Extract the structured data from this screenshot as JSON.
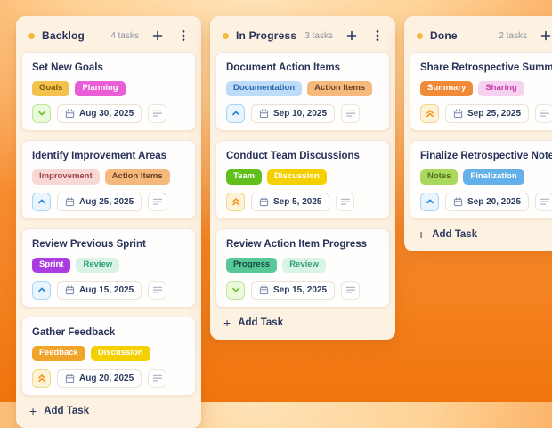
{
  "ui": {
    "add_task_label": "Add Task",
    "add_icon_glyph": "+"
  },
  "colors": {
    "background_top": "#ffe2b6",
    "background_bottom": "#f1750e",
    "column_bg": "#fdf1e2",
    "card_bg": "#fffefc",
    "column_dot": "#f6b844",
    "title_text": "#27325a",
    "count_text": "#8d93a3",
    "priority_low_icon": "#72c438",
    "priority_medium_icon": "#3187d6",
    "priority_high_icon": "#f59a23"
  },
  "board": {
    "columns": [
      {
        "name": "Backlog",
        "count": "4 tasks",
        "tasks": [
          {
            "title": "Set New Goals",
            "tags": [
              {
                "label": "Goals",
                "bg": "#f2c14e",
                "fg": "#7d5c09"
              },
              {
                "label": "Planning",
                "bg": "#e95ed6",
                "fg": "#ffffff"
              }
            ],
            "priority": "low",
            "date": "Aug 30, 2025"
          },
          {
            "title": "Identify Improvement Areas",
            "tags": [
              {
                "label": "Improvement",
                "bg": "#f7d8d4",
                "fg": "#9c4550"
              },
              {
                "label": "Action Items",
                "bg": "#f5b97d",
                "fg": "#6b4226"
              }
            ],
            "priority": "medium",
            "date": "Aug 25, 2025"
          },
          {
            "title": "Review Previous Sprint",
            "tags": [
              {
                "label": "Sprint",
                "bg": "#aa3ce0",
                "fg": "#ffffff"
              },
              {
                "label": "Review",
                "bg": "#d9f4e6",
                "fg": "#2f9e77"
              }
            ],
            "priority": "medium",
            "date": "Aug 15, 2025"
          },
          {
            "title": "Gather Feedback",
            "tags": [
              {
                "label": "Feedback",
                "bg": "#f0a42a",
                "fg": "#ffffff"
              },
              {
                "label": "Discussion",
                "bg": "#f4d000",
                "fg": "#ffffff"
              }
            ],
            "priority": "high",
            "date": "Aug 20, 2025"
          }
        ]
      },
      {
        "name": "In Progress",
        "count": "3 tasks",
        "tasks": [
          {
            "title": "Document Action Items",
            "tags": [
              {
                "label": "Documentation",
                "bg": "#bcdcf7",
                "fg": "#2b66b0"
              },
              {
                "label": "Action Items",
                "bg": "#f5b97d",
                "fg": "#6b4226"
              }
            ],
            "priority": "medium",
            "date": "Sep 10, 2025"
          },
          {
            "title": "Conduct Team Discussions",
            "tags": [
              {
                "label": "Team",
                "bg": "#61bf1d",
                "fg": "#ffffff"
              },
              {
                "label": "Discussion",
                "bg": "#f4d000",
                "fg": "#ffffff"
              }
            ],
            "priority": "high",
            "date": "Sep 5, 2025"
          },
          {
            "title": "Review Action Item Progress",
            "tags": [
              {
                "label": "Progress",
                "bg": "#57c897",
                "fg": "#1b4a40"
              },
              {
                "label": "Review",
                "bg": "#d9f4e6",
                "fg": "#2f9e77"
              }
            ],
            "priority": "low",
            "date": "Sep 15, 2025"
          }
        ]
      },
      {
        "name": "Done",
        "count": "2 tasks",
        "tasks": [
          {
            "title": "Share Retrospective Summary",
            "tags": [
              {
                "label": "Summary",
                "bg": "#f08a36",
                "fg": "#ffffff"
              },
              {
                "label": "Sharing",
                "bg": "#f6d2f0",
                "fg": "#c43ea6"
              }
            ],
            "priority": "high",
            "date": "Sep 25, 2025"
          },
          {
            "title": "Finalize Retrospective Notes",
            "tags": [
              {
                "label": "Notes",
                "bg": "#a8d95c",
                "fg": "#55701d"
              },
              {
                "label": "Finalization",
                "bg": "#64b1ea",
                "fg": "#ffffff"
              }
            ],
            "priority": "medium",
            "date": "Sep 20, 2025"
          }
        ]
      }
    ]
  }
}
